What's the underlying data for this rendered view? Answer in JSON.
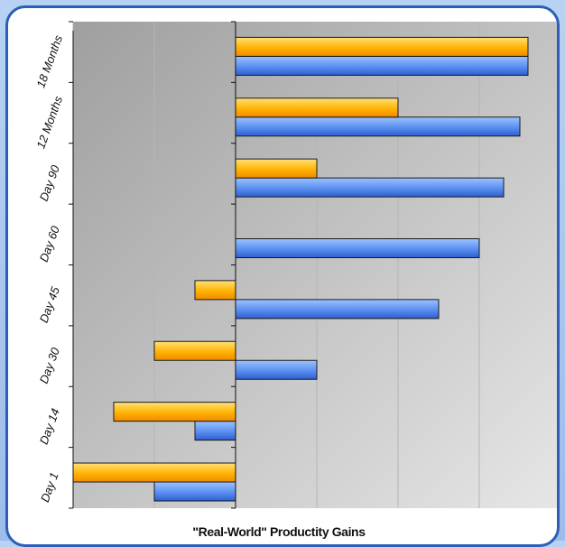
{
  "chart_data": {
    "type": "bar",
    "orientation": "horizontal",
    "title": "\"Real-World\" Productity Gains",
    "categories": [
      "Day 1",
      "Day 14",
      "Day 30",
      "Day 45",
      "Day 60",
      "Day 90",
      "12 Months",
      "18 Months"
    ],
    "series": [
      {
        "color": "#4d86e8",
        "values": [
          -10,
          -5,
          10,
          25,
          30,
          33,
          35,
          36
        ]
      },
      {
        "color": "#ffb300",
        "values": [
          -20,
          -15,
          -10,
          -5,
          0,
          10,
          20,
          36
        ]
      }
    ],
    "xlim": [
      -20,
      40
    ],
    "grid": true,
    "legend": "none"
  }
}
